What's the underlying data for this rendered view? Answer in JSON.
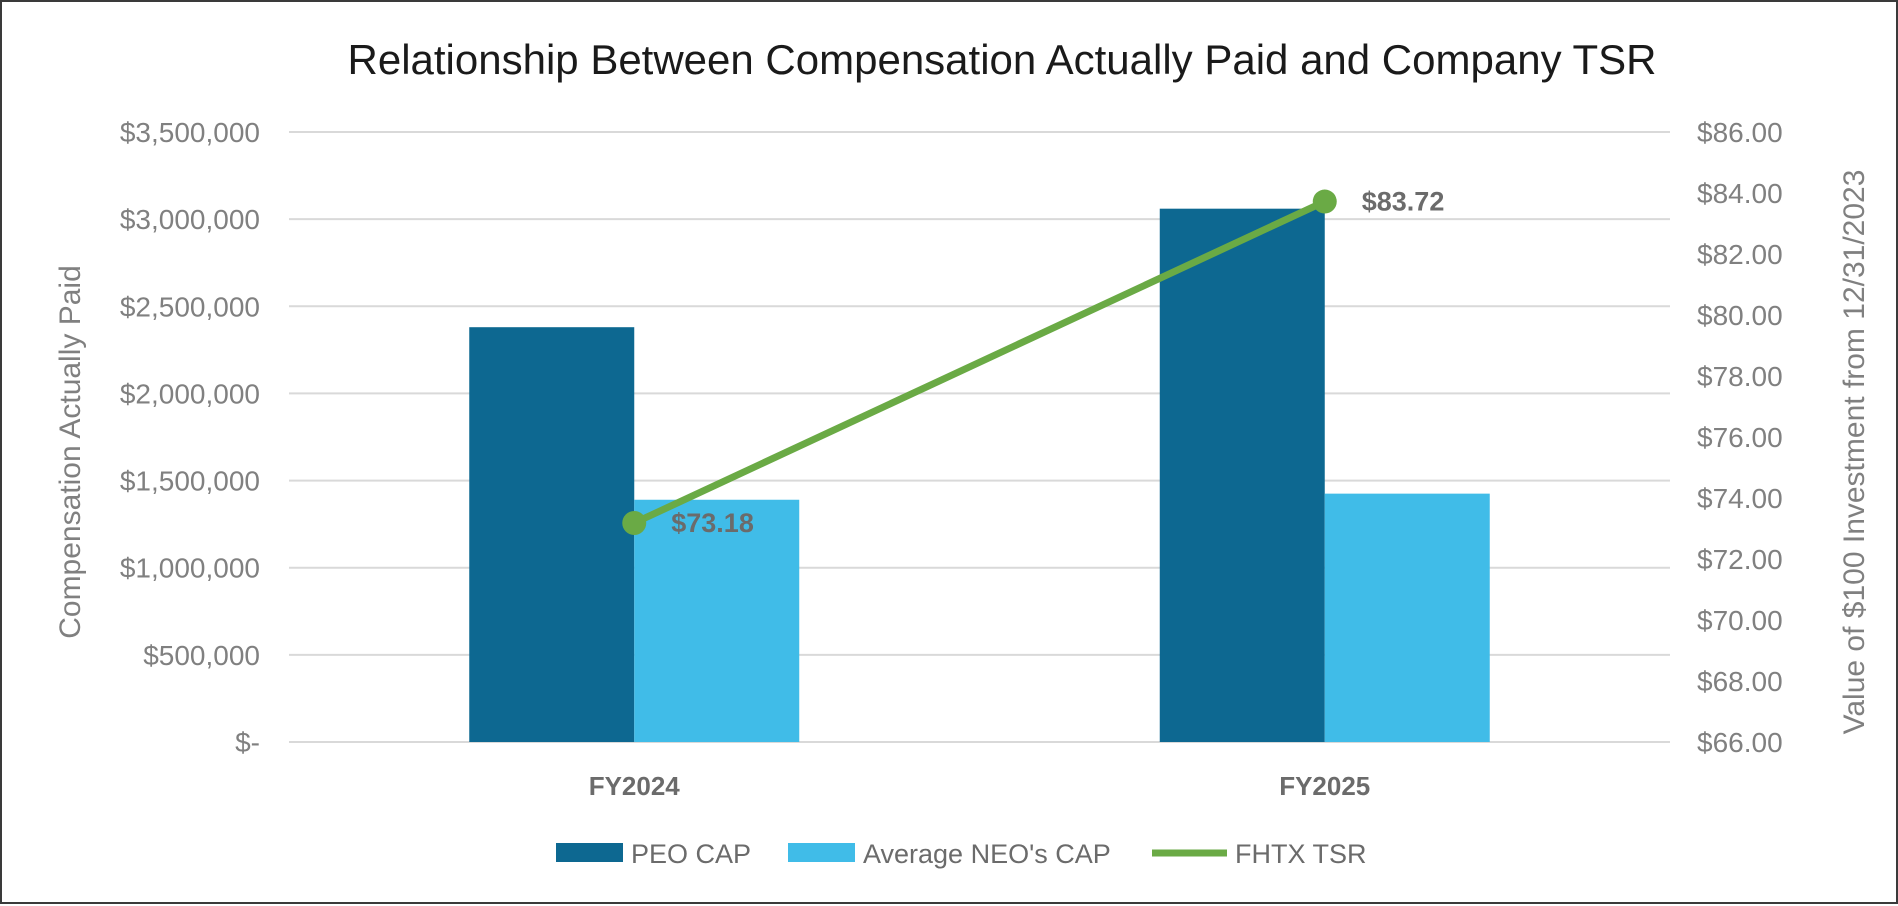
{
  "chart_data": {
    "type": "bar",
    "title": "Relationship Between Compensation Actually Paid and Company TSR",
    "categories": [
      "FY2024",
      "FY2025"
    ],
    "ylabel": "Compensation Actually Paid",
    "y2label": "Value of $100 Investment from 12/31/2023",
    "ylim": [
      0,
      3500000
    ],
    "y2lim": [
      66,
      86
    ],
    "yticks": [
      "$-",
      "$500,000",
      "$1,000,000",
      "$1,500,000",
      "$2,000,000",
      "$2,500,000",
      "$3,000,000",
      "$3,500,000"
    ],
    "y2ticks": [
      "$66.00",
      "$68.00",
      "$70.00",
      "$72.00",
      "$74.00",
      "$76.00",
      "$78.00",
      "$80.00",
      "$82.00",
      "$84.00",
      "$86.00"
    ],
    "series": [
      {
        "name": "PEO CAP",
        "type": "bar",
        "axis": "left",
        "color": "#0d6891",
        "values": [
          2380000,
          3060000
        ]
      },
      {
        "name": "Average NEO's CAP",
        "type": "bar",
        "axis": "left",
        "color": "#40bce8",
        "values": [
          1390000,
          1425000
        ]
      },
      {
        "name": "FHTX TSR",
        "type": "line",
        "axis": "right",
        "color": "#6aaa45",
        "values": [
          73.18,
          83.72
        ],
        "labels": [
          "$73.18",
          "$83.72"
        ]
      }
    ],
    "grid": true,
    "legend_position": "bottom"
  }
}
